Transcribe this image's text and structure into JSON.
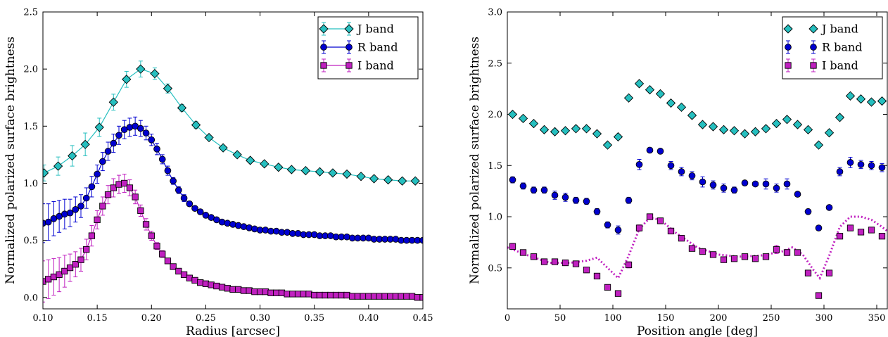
{
  "chart_data": [
    {
      "type": "line",
      "xlabel": "Radius [arcsec]",
      "ylabel": "Normalized polarized surface brightness",
      "xlim": [
        0.1,
        0.45
      ],
      "ylim": [
        -0.1,
        2.5
      ],
      "xticks": [
        "0.10",
        "0.15",
        "0.20",
        "0.25",
        "0.30",
        "0.35",
        "0.40",
        "0.45"
      ],
      "yticks": [
        "0.0",
        "0.5",
        "1.0",
        "1.5",
        "2.0",
        "2.5"
      ],
      "legend_position": "top-right",
      "series": [
        {
          "name": "J band",
          "color": "#26bfbf",
          "marker": "diamond",
          "line": "solid",
          "x": [
            0.101,
            0.114,
            0.127,
            0.139,
            0.152,
            0.165,
            0.177,
            0.19,
            0.203,
            0.215,
            0.228,
            0.241,
            0.253,
            0.266,
            0.279,
            0.291,
            0.304,
            0.317,
            0.329,
            0.342,
            0.355,
            0.367,
            0.38,
            0.393,
            0.405,
            0.418,
            0.431,
            0.443
          ],
          "y": [
            1.09,
            1.15,
            1.24,
            1.34,
            1.49,
            1.71,
            1.91,
            2.0,
            1.96,
            1.83,
            1.66,
            1.51,
            1.4,
            1.31,
            1.25,
            1.2,
            1.17,
            1.14,
            1.12,
            1.11,
            1.1,
            1.09,
            1.08,
            1.06,
            1.04,
            1.03,
            1.02,
            1.02
          ],
          "err": [
            0.07,
            0.08,
            0.09,
            0.1,
            0.08,
            0.07,
            0.07,
            0.07,
            0.05,
            0.04,
            0.03,
            0.03,
            0.02,
            0.02,
            0.02,
            0.02,
            0.01,
            0.01,
            0.01,
            0.01,
            0.01,
            0.01,
            0.01,
            0.01,
            0.01,
            0.01,
            0.01,
            0.01
          ]
        },
        {
          "name": "R band",
          "color": "#0000d0",
          "marker": "circle",
          "line": "solid",
          "x": [
            0.1,
            0.105,
            0.11,
            0.115,
            0.12,
            0.125,
            0.13,
            0.135,
            0.14,
            0.145,
            0.15,
            0.155,
            0.16,
            0.165,
            0.17,
            0.175,
            0.18,
            0.185,
            0.19,
            0.195,
            0.2,
            0.205,
            0.21,
            0.215,
            0.22,
            0.225,
            0.23,
            0.235,
            0.24,
            0.245,
            0.25,
            0.255,
            0.26,
            0.265,
            0.27,
            0.275,
            0.28,
            0.285,
            0.29,
            0.295,
            0.3,
            0.305,
            0.31,
            0.315,
            0.32,
            0.325,
            0.33,
            0.335,
            0.34,
            0.345,
            0.35,
            0.355,
            0.36,
            0.365,
            0.37,
            0.375,
            0.38,
            0.385,
            0.39,
            0.395,
            0.4,
            0.405,
            0.41,
            0.415,
            0.42,
            0.425,
            0.43,
            0.435,
            0.44,
            0.445,
            0.45
          ],
          "y": [
            0.65,
            0.66,
            0.69,
            0.71,
            0.73,
            0.74,
            0.77,
            0.8,
            0.87,
            0.97,
            1.08,
            1.19,
            1.28,
            1.35,
            1.42,
            1.47,
            1.49,
            1.5,
            1.48,
            1.44,
            1.38,
            1.3,
            1.21,
            1.11,
            1.02,
            0.94,
            0.87,
            0.82,
            0.78,
            0.75,
            0.72,
            0.7,
            0.68,
            0.66,
            0.65,
            0.64,
            0.63,
            0.62,
            0.61,
            0.6,
            0.59,
            0.59,
            0.58,
            0.58,
            0.57,
            0.57,
            0.56,
            0.56,
            0.55,
            0.55,
            0.55,
            0.54,
            0.54,
            0.54,
            0.53,
            0.53,
            0.53,
            0.52,
            0.52,
            0.52,
            0.52,
            0.51,
            0.51,
            0.51,
            0.51,
            0.51,
            0.5,
            0.5,
            0.5,
            0.5,
            0.5
          ],
          "err": [
            0.17,
            0.16,
            0.15,
            0.14,
            0.13,
            0.12,
            0.11,
            0.1,
            0.09,
            0.09,
            0.08,
            0.08,
            0.08,
            0.08,
            0.08,
            0.08,
            0.08,
            0.08,
            0.07,
            0.06,
            0.05,
            0.05,
            0.04,
            0.04,
            0.03,
            0.03,
            0.03,
            0.02,
            0.02,
            0.02,
            0.02,
            0.01,
            0.01,
            0.01,
            0.01,
            0.01,
            0.01,
            0.01,
            0.01,
            0.01,
            0.01,
            0.01,
            0.01,
            0.01,
            0.01,
            0.01,
            0.01,
            0.01,
            0.01,
            0.01,
            0.01,
            0.01,
            0.01,
            0.01,
            0.01,
            0.01,
            0.01,
            0.01,
            0.01,
            0.01,
            0.01,
            0.01,
            0.01,
            0.01,
            0.01,
            0.01,
            0.01,
            0.01,
            0.01,
            0.01,
            0.01
          ]
        },
        {
          "name": "I band",
          "color": "#c020c0",
          "marker": "square",
          "line": "solid",
          "x": [
            0.1,
            0.105,
            0.11,
            0.115,
            0.12,
            0.125,
            0.13,
            0.135,
            0.14,
            0.145,
            0.15,
            0.155,
            0.16,
            0.165,
            0.17,
            0.175,
            0.18,
            0.185,
            0.19,
            0.195,
            0.2,
            0.205,
            0.21,
            0.215,
            0.22,
            0.225,
            0.23,
            0.235,
            0.24,
            0.245,
            0.25,
            0.255,
            0.26,
            0.265,
            0.27,
            0.275,
            0.28,
            0.285,
            0.29,
            0.295,
            0.3,
            0.305,
            0.31,
            0.315,
            0.32,
            0.325,
            0.33,
            0.335,
            0.34,
            0.345,
            0.35,
            0.355,
            0.36,
            0.365,
            0.37,
            0.375,
            0.38,
            0.385,
            0.39,
            0.395,
            0.4,
            0.405,
            0.41,
            0.415,
            0.42,
            0.425,
            0.43,
            0.435,
            0.44,
            0.445,
            0.45
          ],
          "y": [
            0.14,
            0.16,
            0.18,
            0.2,
            0.23,
            0.26,
            0.29,
            0.33,
            0.42,
            0.54,
            0.68,
            0.8,
            0.9,
            0.96,
            0.99,
            1.0,
            0.96,
            0.88,
            0.76,
            0.64,
            0.54,
            0.45,
            0.38,
            0.32,
            0.27,
            0.23,
            0.2,
            0.17,
            0.15,
            0.13,
            0.12,
            0.11,
            0.1,
            0.09,
            0.08,
            0.07,
            0.07,
            0.06,
            0.06,
            0.05,
            0.05,
            0.05,
            0.04,
            0.04,
            0.04,
            0.03,
            0.03,
            0.03,
            0.03,
            0.03,
            0.02,
            0.02,
            0.02,
            0.02,
            0.02,
            0.02,
            0.02,
            0.01,
            0.01,
            0.01,
            0.01,
            0.01,
            0.01,
            0.01,
            0.01,
            0.01,
            0.01,
            0.01,
            0.01,
            0.0,
            0.0
          ],
          "err": [
            0.18,
            0.17,
            0.16,
            0.15,
            0.14,
            0.12,
            0.11,
            0.1,
            0.09,
            0.09,
            0.08,
            0.08,
            0.08,
            0.08,
            0.08,
            0.08,
            0.07,
            0.06,
            0.05,
            0.05,
            0.04,
            0.03,
            0.03,
            0.02,
            0.02,
            0.02,
            0.02,
            0.01,
            0.01,
            0.01,
            0.01,
            0.01,
            0.01,
            0.01,
            0.01,
            0.01,
            0.01,
            0.01,
            0.01,
            0.01,
            0.01,
            0.01,
            0.01,
            0.01,
            0.01,
            0.01,
            0.01,
            0.01,
            0.01,
            0.01,
            0.01,
            0.01,
            0.01,
            0.01,
            0.01,
            0.01,
            0.01,
            0.01,
            0.01,
            0.01,
            0.01,
            0.01,
            0.01,
            0.01,
            0.01,
            0.01,
            0.01,
            0.01,
            0.01,
            0.01,
            0.01
          ]
        }
      ]
    },
    {
      "type": "scatter",
      "xlabel": "Position angle [deg]",
      "ylabel": "Normalized polarized surface brightness",
      "xlim": [
        0,
        360
      ],
      "ylim": [
        0.1,
        3.0
      ],
      "xticks": [
        "0",
        "50",
        "100",
        "150",
        "200",
        "250",
        "300",
        "350"
      ],
      "yticks": [
        "0.5",
        "1.0",
        "1.5",
        "2.0",
        "2.5",
        "3.0"
      ],
      "legend_position": "top-right",
      "series": [
        {
          "name": "J band",
          "color": "#26bfbf",
          "marker": "diamond",
          "x": [
            5,
            15,
            25,
            35,
            45,
            55,
            65,
            75,
            85,
            95,
            105,
            115,
            125,
            135,
            145,
            155,
            165,
            175,
            185,
            195,
            205,
            215,
            225,
            235,
            245,
            255,
            265,
            275,
            285,
            295,
            305,
            315,
            325,
            335,
            345,
            355
          ],
          "y": [
            2.0,
            1.96,
            1.91,
            1.85,
            1.83,
            1.84,
            1.86,
            1.86,
            1.81,
            1.7,
            1.78,
            2.16,
            2.3,
            2.24,
            2.2,
            2.11,
            2.07,
            1.99,
            1.9,
            1.88,
            1.85,
            1.84,
            1.81,
            1.83,
            1.86,
            1.91,
            1.95,
            1.9,
            1.85,
            1.7,
            1.82,
            1.97,
            2.18,
            2.15,
            2.12,
            2.13
          ]
        },
        {
          "name": "R band",
          "color": "#0000d0",
          "marker": "circle",
          "x": [
            5,
            15,
            25,
            35,
            45,
            55,
            65,
            75,
            85,
            95,
            105,
            115,
            125,
            135,
            145,
            155,
            165,
            175,
            185,
            195,
            205,
            215,
            225,
            235,
            245,
            255,
            265,
            275,
            285,
            295,
            305,
            315,
            325,
            335,
            345,
            355
          ],
          "y": [
            1.36,
            1.3,
            1.26,
            1.26,
            1.21,
            1.19,
            1.16,
            1.15,
            1.05,
            0.92,
            0.87,
            1.16,
            1.51,
            1.65,
            1.64,
            1.5,
            1.44,
            1.4,
            1.34,
            1.31,
            1.28,
            1.26,
            1.33,
            1.32,
            1.32,
            1.28,
            1.32,
            1.22,
            1.05,
            0.89,
            1.09,
            1.44,
            1.53,
            1.51,
            1.5,
            1.48
          ],
          "err": [
            0.03,
            0.03,
            0.03,
            0.03,
            0.04,
            0.04,
            0.03,
            0.03,
            0.03,
            0.03,
            0.04,
            0.03,
            0.05,
            0.02,
            0.02,
            0.04,
            0.04,
            0.04,
            0.05,
            0.04,
            0.04,
            0.03,
            0.02,
            0.02,
            0.05,
            0.04,
            0.05,
            0.02,
            0.02,
            0.02,
            0.02,
            0.04,
            0.05,
            0.04,
            0.04,
            0.04
          ]
        },
        {
          "name": "I band",
          "color": "#c020c0",
          "marker": "square",
          "x": [
            5,
            15,
            25,
            35,
            45,
            55,
            65,
            75,
            85,
            95,
            105,
            115,
            125,
            135,
            145,
            155,
            165,
            175,
            185,
            195,
            205,
            215,
            225,
            235,
            245,
            255,
            265,
            275,
            285,
            295,
            305,
            315,
            325,
            335,
            345,
            355
          ],
          "y": [
            0.71,
            0.65,
            0.61,
            0.56,
            0.56,
            0.55,
            0.54,
            0.48,
            0.42,
            0.31,
            0.25,
            0.53,
            0.89,
            1.0,
            0.96,
            0.86,
            0.79,
            0.69,
            0.66,
            0.63,
            0.58,
            0.59,
            0.61,
            0.59,
            0.61,
            0.68,
            0.65,
            0.65,
            0.45,
            0.23,
            0.45,
            0.81,
            0.89,
            0.85,
            0.87,
            0.81
          ],
          "err": [
            0.03,
            0.02,
            0.02,
            0.02,
            0.02,
            0.02,
            0.02,
            0.02,
            0.02,
            0.02,
            0.02,
            0.03,
            0.03,
            0.02,
            0.02,
            0.02,
            0.02,
            0.02,
            0.02,
            0.02,
            0.02,
            0.02,
            0.02,
            0.02,
            0.02,
            0.04,
            0.03,
            0.02,
            0.02,
            0.02,
            0.02,
            0.02,
            0.02,
            0.02,
            0.02,
            0.02
          ]
        }
      ],
      "model_curve": {
        "color": "#c020c0",
        "style": "dotted",
        "x": [
          0,
          20,
          40,
          60,
          75,
          85,
          95,
          105,
          115,
          125,
          135,
          145,
          160,
          180,
          200,
          220,
          240,
          260,
          270,
          280,
          290,
          296,
          305,
          315,
          325,
          335,
          345,
          355,
          360
        ],
        "y": [
          0.7,
          0.62,
          0.55,
          0.55,
          0.57,
          0.6,
          0.5,
          0.4,
          0.62,
          0.88,
          0.99,
          0.97,
          0.84,
          0.7,
          0.63,
          0.61,
          0.62,
          0.66,
          0.7,
          0.63,
          0.48,
          0.4,
          0.62,
          0.9,
          1.0,
          1.0,
          0.97,
          0.9,
          0.86
        ]
      }
    }
  ]
}
